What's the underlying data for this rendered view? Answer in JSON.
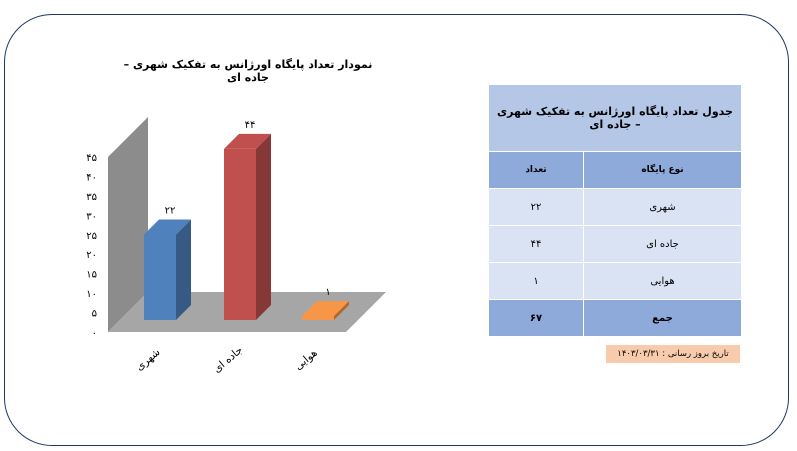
{
  "chart_title": "نمودار تعداد پایگاه اورژانس به تفکیک شهری – جاده ای",
  "chart_data": {
    "type": "bar",
    "categories": [
      "شهری",
      "جاده ای",
      "هوایی"
    ],
    "values": [
      22,
      44,
      1
    ],
    "data_labels": [
      "۲۲",
      "۴۴",
      "۱"
    ],
    "colors": [
      "#4f81bd",
      "#c0504d",
      "#f79646"
    ],
    "ylim": [
      0,
      45
    ],
    "yticks": [
      0,
      5,
      10,
      15,
      20,
      25,
      30,
      35,
      40,
      45
    ],
    "ytick_labels": [
      "۰",
      "۵",
      "۱۰",
      "۱۵",
      "۲۰",
      "۲۵",
      "۳۰",
      "۳۵",
      "۴۰",
      "۴۵"
    ],
    "style": "3d"
  },
  "table": {
    "title": "جدول تعداد پایگاه اورژانس به تفکیک شهری – جاده ای",
    "header": {
      "type": "نوع پایگاه",
      "count": "تعداد"
    },
    "rows": [
      {
        "type": "شهری",
        "count": "۲۲"
      },
      {
        "type": "جاده ای",
        "count": "۴۴"
      },
      {
        "type": "هوایی",
        "count": "۱"
      }
    ],
    "total": {
      "type": "جمع",
      "count": "۶۷"
    }
  },
  "update_date": "تاریخ بروز رسانی : ۱۴۰۳/۰۳/۳۱"
}
